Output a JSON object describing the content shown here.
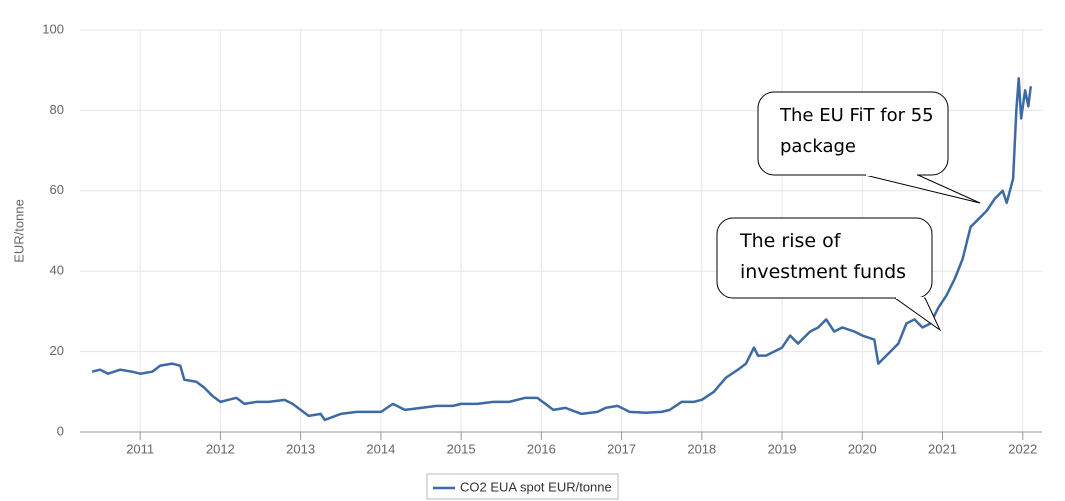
{
  "chart_data": {
    "type": "line",
    "y_label": "EUR/tonne",
    "xlim": [
      2010.25,
      2022.24
    ],
    "ylim": [
      0,
      100
    ],
    "xticks": [
      2011,
      2012,
      2013,
      2014,
      2015,
      2016,
      2017,
      2018,
      2019,
      2020,
      2021,
      2022
    ],
    "yticks": [
      0,
      20,
      40,
      60,
      80,
      100
    ],
    "grid": true,
    "legend": "bottom",
    "annotations": [
      "The EU FiT for 55 package",
      "The rise of investment funds"
    ],
    "x": [
      2010.4,
      2010.5,
      2010.6,
      2010.75,
      2010.9,
      2011.0,
      2011.15,
      2011.25,
      2011.4,
      2011.5,
      2011.55,
      2011.7,
      2011.8,
      2011.9,
      2012.0,
      2012.1,
      2012.2,
      2012.3,
      2012.45,
      2012.6,
      2012.8,
      2012.9,
      2013.0,
      2013.1,
      2013.25,
      2013.3,
      2013.5,
      2013.7,
      2013.9,
      2014.0,
      2014.15,
      2014.3,
      2014.5,
      2014.7,
      2014.9,
      2015.0,
      2015.2,
      2015.4,
      2015.6,
      2015.8,
      2015.95,
      2016.05,
      2016.15,
      2016.3,
      2016.5,
      2016.7,
      2016.8,
      2016.95,
      2017.1,
      2017.3,
      2017.5,
      2017.6,
      2017.75,
      2017.9,
      2018.0,
      2018.15,
      2018.3,
      2018.45,
      2018.55,
      2018.65,
      2018.7,
      2018.8,
      2018.9,
      2019.0,
      2019.1,
      2019.2,
      2019.35,
      2019.45,
      2019.55,
      2019.65,
      2019.75,
      2019.9,
      2020.0,
      2020.15,
      2020.2,
      2020.25,
      2020.35,
      2020.45,
      2020.55,
      2020.65,
      2020.75,
      2020.85,
      2020.95,
      2021.05,
      2021.15,
      2021.25,
      2021.35,
      2021.45,
      2021.55,
      2021.65,
      2021.75,
      2021.8,
      2021.88,
      2021.92,
      2021.95,
      2021.98,
      2022.03,
      2022.07,
      2022.1
    ],
    "series": [
      {
        "name": "CO2 EUA spot EUR/tonne",
        "color": "#3d6aa5",
        "values": [
          15,
          15.5,
          14.5,
          15.5,
          15,
          14.5,
          15,
          16.5,
          17,
          16.5,
          13,
          12.5,
          11,
          9,
          7.5,
          8,
          8.5,
          7,
          7.5,
          7.5,
          8,
          7,
          5.5,
          4,
          4.5,
          3,
          4.5,
          5,
          5,
          5,
          7,
          5.5,
          6,
          6.5,
          6.5,
          7,
          7,
          7.5,
          7.5,
          8.5,
          8.5,
          7,
          5.5,
          6,
          4.5,
          5,
          6,
          6.5,
          5,
          4.8,
          5,
          5.5,
          7.5,
          7.5,
          8,
          10,
          13.5,
          15.5,
          17,
          21,
          19,
          19,
          20,
          21,
          24,
          22,
          25,
          26,
          28,
          25,
          26,
          25,
          24,
          23,
          17,
          18,
          20,
          22,
          27,
          28,
          26,
          27,
          31,
          34,
          38,
          43,
          51,
          53,
          55,
          58,
          60,
          57,
          63,
          80,
          88,
          78,
          85,
          81,
          86
        ]
      }
    ]
  }
}
